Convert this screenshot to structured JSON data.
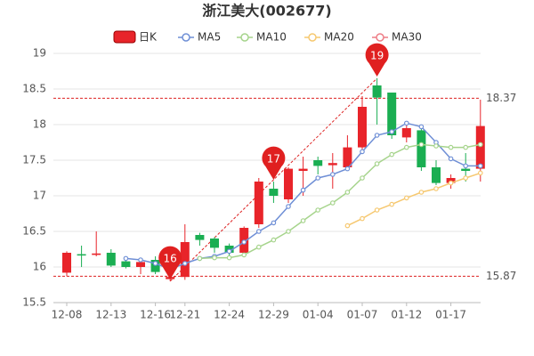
{
  "chart_data": {
    "type": "candlestick",
    "title": "浙江美大(002677)",
    "candle_name": "日K",
    "up_color": "#e8242a",
    "down_color": "#1aae52",
    "categories": [
      "12-08",
      null,
      null,
      "12-13",
      null,
      null,
      "12-16",
      null,
      "12-21",
      null,
      null,
      "12-24",
      null,
      null,
      "12-29",
      null,
      null,
      "01-04",
      null,
      null,
      "01-07",
      null,
      null,
      "01-12",
      null,
      null,
      "01-17",
      null,
      null
    ],
    "open": [
      15.92,
      16.18,
      16.17,
      16.2,
      16.08,
      16.0,
      16.1,
      15.83,
      15.86,
      16.45,
      16.4,
      16.3,
      16.2,
      16.6,
      17.1,
      16.95,
      17.35,
      17.5,
      17.43,
      17.4,
      17.68,
      18.55,
      18.45,
      17.82,
      17.92,
      17.4,
      17.18,
      17.38,
      17.38
    ],
    "high": [
      16.22,
      16.3,
      16.5,
      16.25,
      16.15,
      16.1,
      16.15,
      16.05,
      16.6,
      16.48,
      16.42,
      16.33,
      16.57,
      17.25,
      17.2,
      17.4,
      17.55,
      17.55,
      17.6,
      17.85,
      18.4,
      18.65,
      18.45,
      18.0,
      17.95,
      17.5,
      17.3,
      17.6,
      18.35
    ],
    "low": [
      15.87,
      16.0,
      16.15,
      16.0,
      15.98,
      15.9,
      15.9,
      15.8,
      15.82,
      16.3,
      16.2,
      16.15,
      16.15,
      16.55,
      16.9,
      16.9,
      17.0,
      17.3,
      17.1,
      17.35,
      17.65,
      18.0,
      17.8,
      17.75,
      17.35,
      17.15,
      17.1,
      17.2,
      17.2
    ],
    "close": [
      16.2,
      16.17,
      16.19,
      16.02,
      16.0,
      16.07,
      15.93,
      15.86,
      16.35,
      16.38,
      16.27,
      16.2,
      16.55,
      17.2,
      17.0,
      17.38,
      17.38,
      17.42,
      17.46,
      17.68,
      18.25,
      18.38,
      17.85,
      17.95,
      17.4,
      17.18,
      17.25,
      17.35,
      17.98
    ],
    "series": [
      {
        "name": "MA5",
        "color": "#6f8fd6",
        "values": [
          null,
          null,
          null,
          null,
          16.12,
          16.1,
          16.05,
          15.97,
          16.05,
          16.12,
          16.15,
          16.22,
          16.35,
          16.5,
          16.62,
          16.85,
          17.08,
          17.25,
          17.3,
          17.38,
          17.62,
          17.85,
          17.9,
          18.02,
          17.97,
          17.75,
          17.52,
          17.42,
          17.42
        ]
      },
      {
        "name": "MA10",
        "color": "#a6d48c",
        "values": [
          null,
          null,
          null,
          null,
          null,
          null,
          null,
          null,
          null,
          16.12,
          16.13,
          16.13,
          16.17,
          16.28,
          16.38,
          16.5,
          16.65,
          16.8,
          16.9,
          17.05,
          17.25,
          17.45,
          17.58,
          17.68,
          17.72,
          17.7,
          17.68,
          17.68,
          17.72
        ]
      },
      {
        "name": "MA20",
        "color": "#f6c870",
        "values": [
          null,
          null,
          null,
          null,
          null,
          null,
          null,
          null,
          null,
          null,
          null,
          null,
          null,
          null,
          null,
          null,
          null,
          null,
          null,
          16.58,
          16.68,
          16.8,
          16.88,
          16.97,
          17.05,
          17.1,
          17.18,
          17.25,
          17.32
        ]
      },
      {
        "name": "MA30",
        "color": "#ee7d86",
        "values": [
          null,
          null,
          null,
          null,
          null,
          null,
          null,
          null,
          null,
          null,
          null,
          null,
          null,
          null,
          null,
          null,
          null,
          null,
          null,
          null,
          null,
          null,
          null,
          null,
          null,
          null,
          null,
          null,
          null
        ]
      }
    ],
    "ylim": [
      15.5,
      19
    ],
    "yticks": [
      15.5,
      16,
      16.5,
      17,
      17.5,
      18,
      18.5,
      19
    ],
    "grid": true,
    "hlines": [
      18.37,
      15.87
    ],
    "pins": [
      "16",
      "17",
      "19"
    ]
  }
}
